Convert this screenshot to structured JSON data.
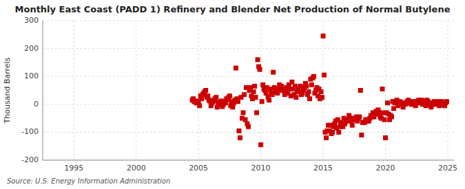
{
  "chart_data": {
    "type": "scatter",
    "title": "Monthly East Coast (PADD 1) Refinery and Blender Net Production of Normal Butylene",
    "y_label": "Thousand Barrels",
    "source": "Source: U.S. Energy Information Administration",
    "color": "#cc0000",
    "marker": "square",
    "grid": true,
    "xlim": [
      1992.5,
      2025.5
    ],
    "ylim": [
      -200,
      300
    ],
    "xticks": [
      1995,
      2000,
      2005,
      2010,
      2015,
      2020,
      2025
    ],
    "yticks": [
      -200,
      -100,
      0,
      100,
      200,
      300
    ],
    "x": [
      2004.5,
      2004.583,
      2004.667,
      2004.75,
      2004.833,
      2004.917,
      2005.0,
      2005.083,
      2005.167,
      2005.25,
      2005.333,
      2005.417,
      2005.5,
      2005.583,
      2005.667,
      2005.75,
      2005.833,
      2005.917,
      2006.0,
      2006.083,
      2006.167,
      2006.25,
      2006.333,
      2006.417,
      2006.5,
      2006.583,
      2006.667,
      2006.75,
      2006.833,
      2006.917,
      2007.0,
      2007.083,
      2007.167,
      2007.25,
      2007.333,
      2007.417,
      2007.5,
      2007.583,
      2007.667,
      2007.75,
      2007.833,
      2007.917,
      2008.0,
      2008.083,
      2008.167,
      2008.25,
      2008.333,
      2008.417,
      2008.5,
      2008.583,
      2008.667,
      2008.75,
      2008.833,
      2008.917,
      2009.0,
      2009.083,
      2009.167,
      2009.25,
      2009.333,
      2009.417,
      2009.5,
      2009.583,
      2009.667,
      2009.75,
      2009.833,
      2009.917,
      2010.0,
      2010.083,
      2010.167,
      2010.25,
      2010.333,
      2010.417,
      2010.5,
      2010.583,
      2010.667,
      2010.75,
      2010.833,
      2010.917,
      2011.0,
      2011.083,
      2011.167,
      2011.25,
      2011.333,
      2011.417,
      2011.5,
      2011.583,
      2011.667,
      2011.75,
      2011.833,
      2011.917,
      2012.0,
      2012.083,
      2012.167,
      2012.25,
      2012.333,
      2012.417,
      2012.5,
      2012.583,
      2012.667,
      2012.75,
      2012.833,
      2012.917,
      2013.0,
      2013.083,
      2013.167,
      2013.25,
      2013.333,
      2013.417,
      2013.5,
      2013.583,
      2013.667,
      2013.75,
      2013.833,
      2013.917,
      2014.0,
      2014.083,
      2014.167,
      2014.25,
      2014.333,
      2014.417,
      2014.5,
      2014.583,
      2014.667,
      2014.75,
      2014.833,
      2014.917,
      2015.0,
      2015.083,
      2015.167,
      2015.25,
      2015.333,
      2015.417,
      2015.5,
      2015.583,
      2015.667,
      2015.75,
      2015.833,
      2015.917,
      2016.0,
      2016.083,
      2016.167,
      2016.25,
      2016.333,
      2016.417,
      2016.5,
      2016.583,
      2016.667,
      2016.75,
      2016.833,
      2016.917,
      2017.0,
      2017.083,
      2017.167,
      2017.25,
      2017.333,
      2017.417,
      2017.5,
      2017.583,
      2017.667,
      2017.75,
      2017.833,
      2017.917,
      2018.0,
      2018.083,
      2018.167,
      2018.25,
      2018.333,
      2018.417,
      2018.5,
      2018.583,
      2018.667,
      2018.75,
      2018.833,
      2018.917,
      2019.0,
      2019.083,
      2019.167,
      2019.25,
      2019.333,
      2019.417,
      2019.5,
      2019.583,
      2019.667,
      2019.75,
      2019.833,
      2019.917,
      2020.0,
      2020.083,
      2020.167,
      2020.25,
      2020.333,
      2020.417,
      2020.5,
      2020.583,
      2020.667,
      2020.75,
      2020.833,
      2020.917,
      2021.0,
      2021.083,
      2021.167,
      2021.25,
      2021.333,
      2021.417,
      2021.5,
      2021.583,
      2021.667,
      2021.75,
      2021.833,
      2021.917,
      2022.0,
      2022.083,
      2022.167,
      2022.25,
      2022.333,
      2022.417,
      2022.5,
      2022.583,
      2022.667,
      2022.75,
      2022.833,
      2022.917,
      2023.0,
      2023.083,
      2023.167,
      2023.25,
      2023.333,
      2023.417,
      2023.5,
      2023.583,
      2023.667,
      2023.75,
      2023.833,
      2023.917,
      2024.0,
      2024.083,
      2024.167,
      2024.25,
      2024.333,
      2024.417,
      2024.5,
      2024.583,
      2024.667,
      2024.75,
      2024.833,
      2024.917
    ],
    "values": [
      15,
      20,
      10,
      8,
      5,
      12,
      10,
      -5,
      30,
      20,
      35,
      40,
      45,
      50,
      25,
      30,
      15,
      12,
      -5,
      5,
      10,
      15,
      20,
      25,
      -10,
      5,
      -2,
      8,
      12,
      -8,
      0,
      10,
      5,
      20,
      15,
      25,
      30,
      -5,
      10,
      -10,
      5,
      15,
      130,
      20,
      10,
      -95,
      -120,
      25,
      -50,
      -30,
      35,
      -55,
      60,
      -70,
      -80,
      50,
      60,
      30,
      20,
      45,
      65,
      25,
      -30,
      160,
      135,
      125,
      -145,
      10,
      70,
      55,
      50,
      40,
      60,
      25,
      15,
      55,
      40,
      35,
      115,
      60,
      45,
      55,
      40,
      50,
      70,
      55,
      65,
      50,
      55,
      35,
      50,
      60,
      40,
      70,
      55,
      30,
      80,
      55,
      35,
      65,
      25,
      45,
      55,
      45,
      65,
      35,
      40,
      50,
      60,
      75,
      65,
      35,
      45,
      20,
      90,
      70,
      95,
      100,
      40,
      50,
      60,
      30,
      55,
      20,
      45,
      25,
      245,
      105,
      -100,
      -120,
      -95,
      -75,
      -95,
      -75,
      -105,
      -100,
      -80,
      -70,
      -60,
      -85,
      -55,
      -100,
      -80,
      -65,
      -70,
      -80,
      -50,
      -70,
      -60,
      -55,
      -60,
      -40,
      -50,
      -60,
      -75,
      -55,
      -50,
      -55,
      -45,
      -60,
      -50,
      -45,
      50,
      -110,
      -65,
      -65,
      -65,
      -55,
      -60,
      -55,
      -60,
      -50,
      -40,
      -45,
      -30,
      -45,
      -35,
      -25,
      -35,
      -20,
      -30,
      -45,
      -50,
      55,
      -30,
      -55,
      -120,
      -30,
      5,
      -35,
      -55,
      -40,
      -45,
      10,
      -15,
      5,
      10,
      15,
      -5,
      5,
      10,
      0,
      5,
      -10,
      5,
      0,
      5,
      10,
      15,
      5,
      5,
      0,
      10,
      5,
      0,
      -5,
      10,
      5,
      15,
      10,
      5,
      15,
      0,
      10,
      5,
      -5,
      15,
      10,
      0,
      5,
      -10,
      5,
      0,
      10,
      5,
      0,
      5,
      10,
      -5,
      0,
      10,
      5,
      0,
      -5,
      5,
      10
    ]
  }
}
